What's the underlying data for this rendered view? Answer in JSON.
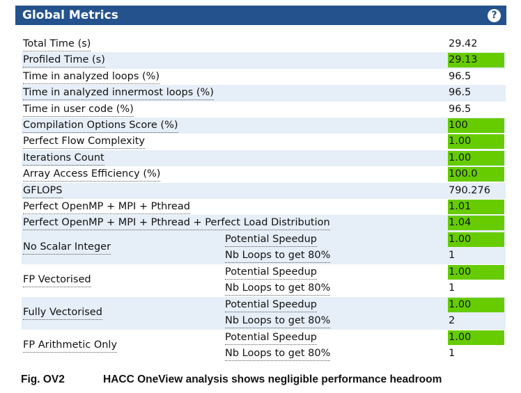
{
  "header": {
    "title": "Global Metrics",
    "help_glyph": "?"
  },
  "metrics": [
    {
      "label": "Total Time (s)",
      "value": "29.42",
      "highlight": false
    },
    {
      "label": "Profiled Time (s)",
      "value": "29.13",
      "highlight": true
    },
    {
      "label": "Time in analyzed loops (%)",
      "value": "96.5",
      "highlight": false
    },
    {
      "label": "Time in analyzed innermost loops (%)",
      "value": "96.5",
      "highlight": false
    },
    {
      "label": "Time in user code (%)",
      "value": "96.5",
      "highlight": false
    },
    {
      "label": "Compilation Options Score (%)",
      "value": "100",
      "highlight": true
    },
    {
      "label": "Perfect Flow Complexity",
      "value": "1.00",
      "highlight": true
    },
    {
      "label": "Iterations Count",
      "value": "1.00",
      "highlight": true
    },
    {
      "label": "Array Access Efficiency (%)",
      "value": "100.0",
      "highlight": true
    },
    {
      "label": "GFLOPS",
      "value": "790.276",
      "highlight": false
    },
    {
      "label": "Perfect OpenMP + MPI + Pthread",
      "value": "1.01",
      "highlight": true
    },
    {
      "label": "Perfect OpenMP + MPI + Pthread + Perfect Load Distribution",
      "value": "1.04",
      "highlight": true
    }
  ],
  "groups": [
    {
      "label": "No Scalar Integer",
      "speedup_label": "Potential Speedup",
      "speedup": "1.00",
      "loops_label": "Nb Loops to get 80%",
      "loops": "1"
    },
    {
      "label": "FP Vectorised",
      "speedup_label": "Potential Speedup",
      "speedup": "1.00",
      "loops_label": "Nb Loops to get 80%",
      "loops": "1"
    },
    {
      "label": "Fully Vectorised",
      "speedup_label": "Potential Speedup",
      "speedup": "1.00",
      "loops_label": "Nb Loops to get 80%",
      "loops": "2"
    },
    {
      "label": "FP Arithmetic Only",
      "speedup_label": "Potential Speedup",
      "speedup": "1.00",
      "loops_label": "Nb Loops to get 80%",
      "loops": "1"
    }
  ],
  "caption": {
    "figure": "Fig. OV2",
    "text": "HACC OneView analysis shows negligible performance headroom"
  },
  "colors": {
    "header_bg": "#24528c",
    "highlight": "#66cc00",
    "row_shade": "#e6eef7"
  },
  "icons": {
    "help": "help-circle-icon"
  }
}
